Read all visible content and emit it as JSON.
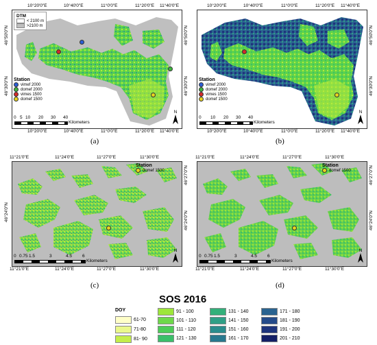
{
  "panels": {
    "a": {
      "caption": "(a)",
      "top_ticks": [
        "10°20'0\"E",
        "10°40'0\"E",
        "11°0'0\"E",
        "11°20'0\"E",
        "11°40'0\"E"
      ],
      "bottom_ticks": [
        "10°20'0\"E",
        "10°40'0\"E",
        "11°0'0\"E",
        "11°20'0\"E",
        "11°40'0\"E"
      ],
      "left_ticks": [
        "46°50'0\"N",
        "46°30'0\"N"
      ],
      "right_ticks": [
        "46°50'0\"N",
        "46°30'0\"N"
      ],
      "dtm_title": "DTM",
      "dtm_items": [
        "< 2100 m",
        ">2100 m"
      ],
      "station_title": "Station",
      "stations": [
        {
          "label": "vimef 2000",
          "color": "#2d5fd6"
        },
        {
          "label": "domef 2000",
          "color": "#3fb53f"
        },
        {
          "label": "vimes 1500",
          "color": "#d42a2a"
        },
        {
          "label": "domef 1500",
          "color": "#e8d21e"
        }
      ],
      "scale_ticks": [
        "0",
        "5",
        "10",
        "20",
        "30",
        "40"
      ],
      "scale_unit": "Kilometers",
      "north": "N"
    },
    "b": {
      "caption": "(b)",
      "top_ticks": [
        "10°20'0\"E",
        "10°40'0\"E",
        "11°0'0\"E",
        "11°20'0\"E",
        "11°40'0\"E"
      ],
      "bottom_ticks": [
        "10°20'0\"E",
        "10°40'0\"E",
        "11°0'0\"E",
        "11°20'0\"E",
        "11°40'0\"E"
      ],
      "right_ticks": [
        "46°50'0\"N",
        "46°30'0\"N"
      ],
      "station_title": "Station",
      "stations": [
        {
          "label": "vimef 2000",
          "color": "#2d5fd6"
        },
        {
          "label": "domef 2000",
          "color": "#3fb53f"
        },
        {
          "label": "vimes 1500",
          "color": "#d42a2a"
        },
        {
          "label": "domef 1500",
          "color": "#e8d21e"
        }
      ],
      "scale_ticks": [
        "0",
        "10",
        "20",
        "30",
        "40"
      ],
      "scale_unit": "Kilometers",
      "north": "N"
    },
    "c": {
      "caption": "(c)",
      "top_ticks": [
        "11°21'0\"E",
        "11°24'0\"E",
        "11°27'0\"E",
        "11°30'0\"E"
      ],
      "bottom_ticks": [
        "11°21'0\"E",
        "11°24'0\"E",
        "11°27'0\"E",
        "11°30'0\"E"
      ],
      "left_ticks": [
        "46°24'0\"N"
      ],
      "right_ticks": [
        "46°27'0\"N",
        "46°24'0\"N"
      ],
      "station_title": "Station",
      "station_label": "domef 1500",
      "scale_ticks": [
        "0",
        "0.75",
        "1.5",
        "3",
        "4.5",
        "6"
      ],
      "scale_unit": "Kilometers",
      "north": "N"
    },
    "d": {
      "caption": "(d)",
      "top_ticks": [
        "11°21'0\"E",
        "11°24'0\"E",
        "11°27'0\"E",
        "11°30'0\"E"
      ],
      "bottom_ticks": [
        "11°21'0\"E",
        "11°24'0\"E",
        "11°27'0\"E",
        "11°30'0\"E"
      ],
      "right_ticks": [
        "46°27'0\"N",
        "46°24'0\"N"
      ],
      "station_title": "Station",
      "station_label": "domef 1500",
      "scale_ticks": [
        "0",
        "0.75",
        "1.5",
        "3",
        "4.5",
        "6"
      ],
      "scale_unit": "Kilometers",
      "north": "N"
    }
  },
  "legend": {
    "title": "SOS 2016",
    "doy_label": "DOY",
    "col1": [
      {
        "label": "61-70",
        "color": "#ffffc8"
      },
      {
        "label": "71-80",
        "color": "#eaf88c"
      },
      {
        "label": "81- 90",
        "color": "#c4ee4a"
      }
    ],
    "col2": [
      {
        "label": "91 - 100",
        "color": "#9de63a"
      },
      {
        "label": "101 - 110",
        "color": "#6ed84a"
      },
      {
        "label": "111 - 120",
        "color": "#4dcc58"
      },
      {
        "label": "121 - 130",
        "color": "#3bbf6a"
      }
    ],
    "col3": [
      {
        "label": "131 - 140",
        "color": "#33b07a"
      },
      {
        "label": "141 - 150",
        "color": "#2f9f86"
      },
      {
        "label": "151 - 160",
        "color": "#2a8d8d"
      },
      {
        "label": "161 - 170",
        "color": "#28798f"
      }
    ],
    "col4": [
      {
        "label": "171 - 180",
        "color": "#2a6390"
      },
      {
        "label": "181 - 190",
        "color": "#254b8a"
      },
      {
        "label": "191 - 200",
        "color": "#1e347c"
      },
      {
        "label": "201 - 210",
        "color": "#141f66"
      }
    ]
  },
  "colors": {
    "grey": "#bfbfbf",
    "green": "#5fd34a",
    "yellowgreen": "#b6ea3c",
    "teal": "#2f9f86",
    "navy": "#1e347c"
  }
}
